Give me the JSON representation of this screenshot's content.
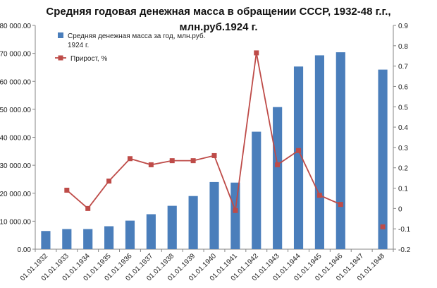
{
  "chart_data": {
    "type": "bar",
    "title_lines": [
      "Средняя годовая денежная масса в обращении СССР, 1932-48 г.г.,",
      "млн.руб.1924 г."
    ],
    "categories": [
      "01.01.1932",
      "01.01.1933",
      "01.01.1934",
      "01.01.1935",
      "01.01.1936",
      "01.01.1937",
      "01.01.1938",
      "01.01.1939",
      "01.01.1940",
      "01.01.1941",
      "01.01.1942",
      "01.01.1943",
      "01.01.1944",
      "01.01.1945",
      "01.01.1946",
      "01.01.1947",
      "01.01.1948"
    ],
    "left_axis": {
      "min": 0,
      "max": 80000,
      "ticks": [
        "0.00",
        "10 000.00",
        "20 000.00",
        "30 000.00",
        "40 000.00",
        "50 000.00",
        "60 000.00",
        "70 000.00",
        "80 000.00"
      ]
    },
    "right_axis": {
      "min": -0.2,
      "max": 0.9,
      "ticks": [
        "-0.2",
        "-0.1",
        "0",
        "0.1",
        "0.2",
        "0.3",
        "0.4",
        "0.5",
        "0.6",
        "0.7",
        "0.8",
        "0.9"
      ]
    },
    "grid": false,
    "legend_position": "top-left",
    "series": [
      {
        "name": "Средняя денежная масса за год, млн.руб. 1924 г.",
        "legend_lines": [
          "Средняя денежная масса за год, млн.руб.",
          "1924 г."
        ],
        "kind": "bar",
        "axis": "left",
        "color": "#4a7ebb",
        "values": [
          6500,
          7200,
          7200,
          8200,
          10200,
          12500,
          15500,
          19000,
          24000,
          23800,
          42000,
          50800,
          65300,
          69300,
          70400,
          null,
          64200
        ]
      },
      {
        "name": "Прирост, %",
        "kind": "line",
        "axis": "right",
        "color": "#be4b48",
        "values": [
          null,
          0.09,
          0.0,
          0.135,
          0.245,
          0.215,
          0.235,
          0.235,
          0.26,
          -0.01,
          0.765,
          0.215,
          0.285,
          0.065,
          0.02,
          null,
          -0.09
        ]
      }
    ]
  }
}
